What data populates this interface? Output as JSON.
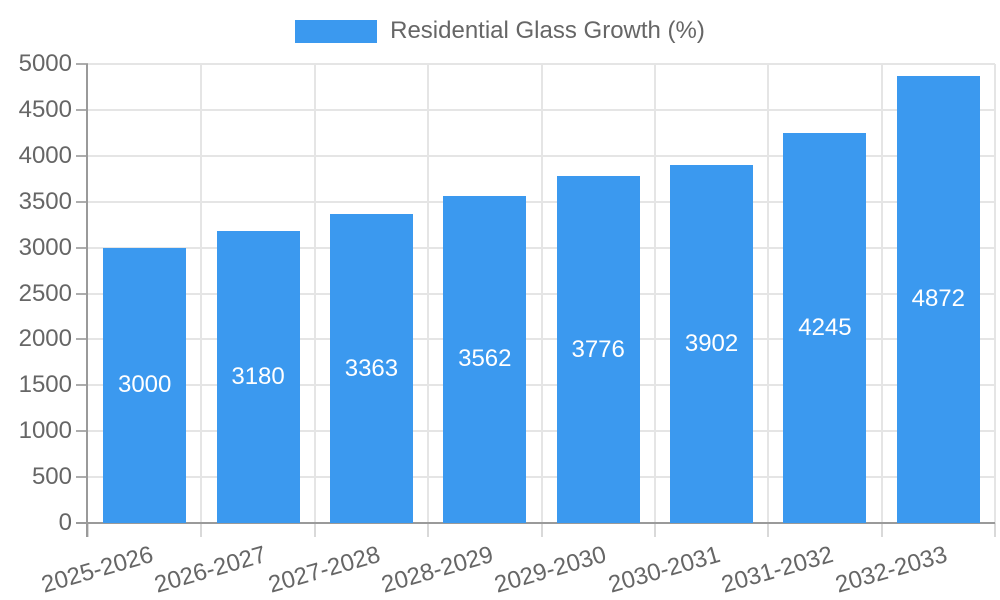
{
  "chart_data": {
    "type": "bar",
    "title": "",
    "legend": {
      "label": "Residential Glass Growth (%)",
      "position": "top"
    },
    "categories": [
      "2025-2026",
      "2026-2027",
      "2027-2028",
      "2028-2029",
      "2029-2030",
      "2030-2031",
      "2031-2032",
      "2032-2033"
    ],
    "series": [
      {
        "name": "Residential Glass Growth (%)",
        "values": [
          3000,
          3180,
          3363,
          3562,
          3776,
          3902,
          4245,
          4872
        ]
      }
    ],
    "value_labels": [
      "3000",
      "3180",
      "3363",
      "3562",
      "3776",
      "3902",
      "4245",
      "4872"
    ],
    "y_axis": {
      "min": 0,
      "max": 5000,
      "tick_step": 500,
      "tick_values": [
        0,
        500,
        1000,
        1500,
        2000,
        2500,
        3000,
        3500,
        4000,
        4500,
        5000
      ],
      "tick_labels": [
        "0",
        "500",
        "1000",
        "1500",
        "2000",
        "2500",
        "3000",
        "3500",
        "4000",
        "4500",
        "5000"
      ]
    },
    "x_tick_rotation_deg": -16,
    "grid": true,
    "legend_position": "top",
    "colors": {
      "bar": "#3B99EF",
      "grid": "#E5E5E5",
      "axis": "#9A9A9A",
      "y_tick": "#ADADAD",
      "x_tick": "#D9D9D9",
      "text": "#666666",
      "value_text": "#FFFFFF",
      "background": "#FFFFFF"
    }
  }
}
